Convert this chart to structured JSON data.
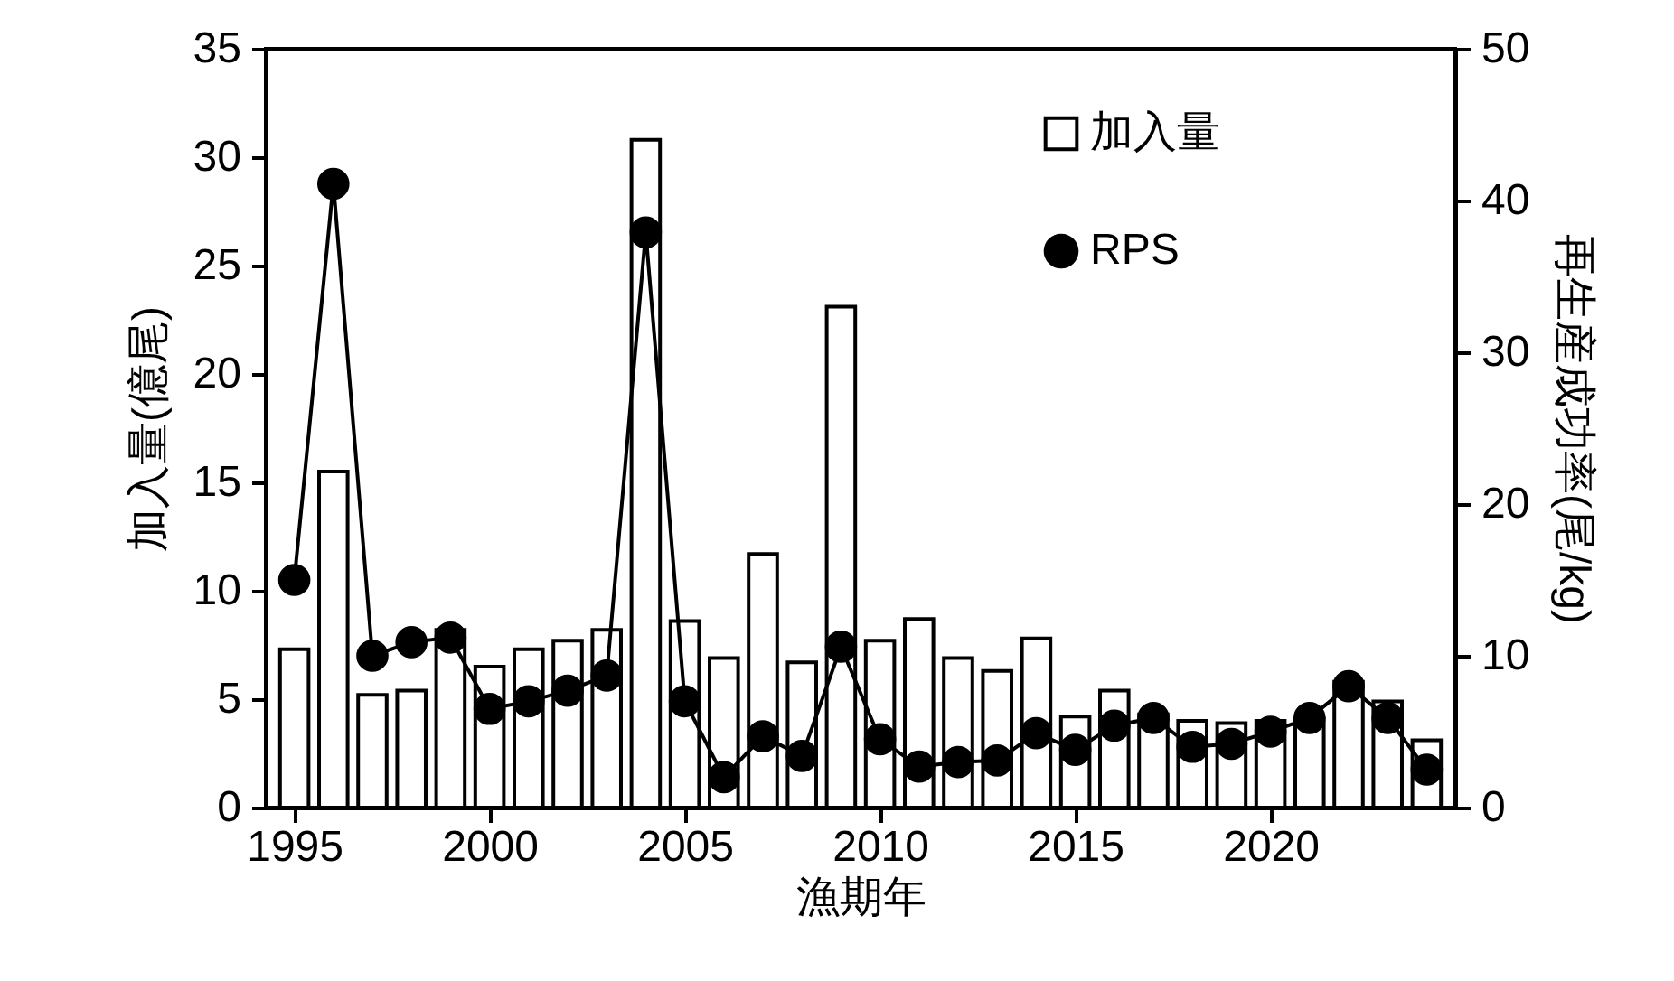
{
  "chart_data": {
    "type": "bar",
    "xlabel": "漁期年",
    "ylabel": "加入量(億尾)",
    "y2label": "再生産成功率(尾/kg)",
    "x": [
      1995,
      1996,
      1997,
      1998,
      1999,
      2000,
      2001,
      2002,
      2003,
      2004,
      2005,
      2006,
      2007,
      2008,
      2009,
      2010,
      2011,
      2012,
      2013,
      2014,
      2015,
      2016,
      2017,
      2018,
      2019,
      2020,
      2021,
      2022,
      2023,
      2024
    ],
    "xlim": [
      1994.5,
      2024.5
    ],
    "xticks": [
      1995,
      2000,
      2005,
      2010,
      2015,
      2020
    ],
    "ylim": [
      0,
      35
    ],
    "yticks": [
      0,
      5,
      10,
      15,
      20,
      25,
      30,
      35
    ],
    "y2lim": [
      0,
      50
    ],
    "y2ticks": [
      0,
      10,
      20,
      30,
      40,
      50
    ],
    "grid": false,
    "legend": "top right",
    "series": [
      {
        "name": "加入量",
        "color": "#ffffff",
        "values": [
          7.3,
          15.5,
          5.2,
          5.4,
          8.2,
          6.5,
          7.3,
          7.7,
          8.2,
          30.8,
          8.6,
          6.9,
          11.7,
          6.7,
          23.1,
          7.7,
          8.7,
          6.9,
          6.3,
          7.8,
          4.2,
          5.4,
          4.3,
          4.0,
          3.9,
          4.0,
          4.1,
          5.8,
          4.9,
          3.1
        ]
      },
      {
        "name": "RPS",
        "type": "line",
        "axis": "y2",
        "color": "#000000",
        "marker": "circle",
        "line_style": "solid",
        "values": [
          15.0,
          41.1,
          10.0,
          10.9,
          11.2,
          6.5,
          7.0,
          7.7,
          8.7,
          37.9,
          7.0,
          2.0,
          4.7,
          3.4,
          10.6,
          4.5,
          2.7,
          3.0,
          3.1,
          4.9,
          3.8,
          5.4,
          5.9,
          4.0,
          4.2,
          5.0,
          5.9,
          8.0,
          5.9,
          2.5
        ]
      }
    ]
  }
}
